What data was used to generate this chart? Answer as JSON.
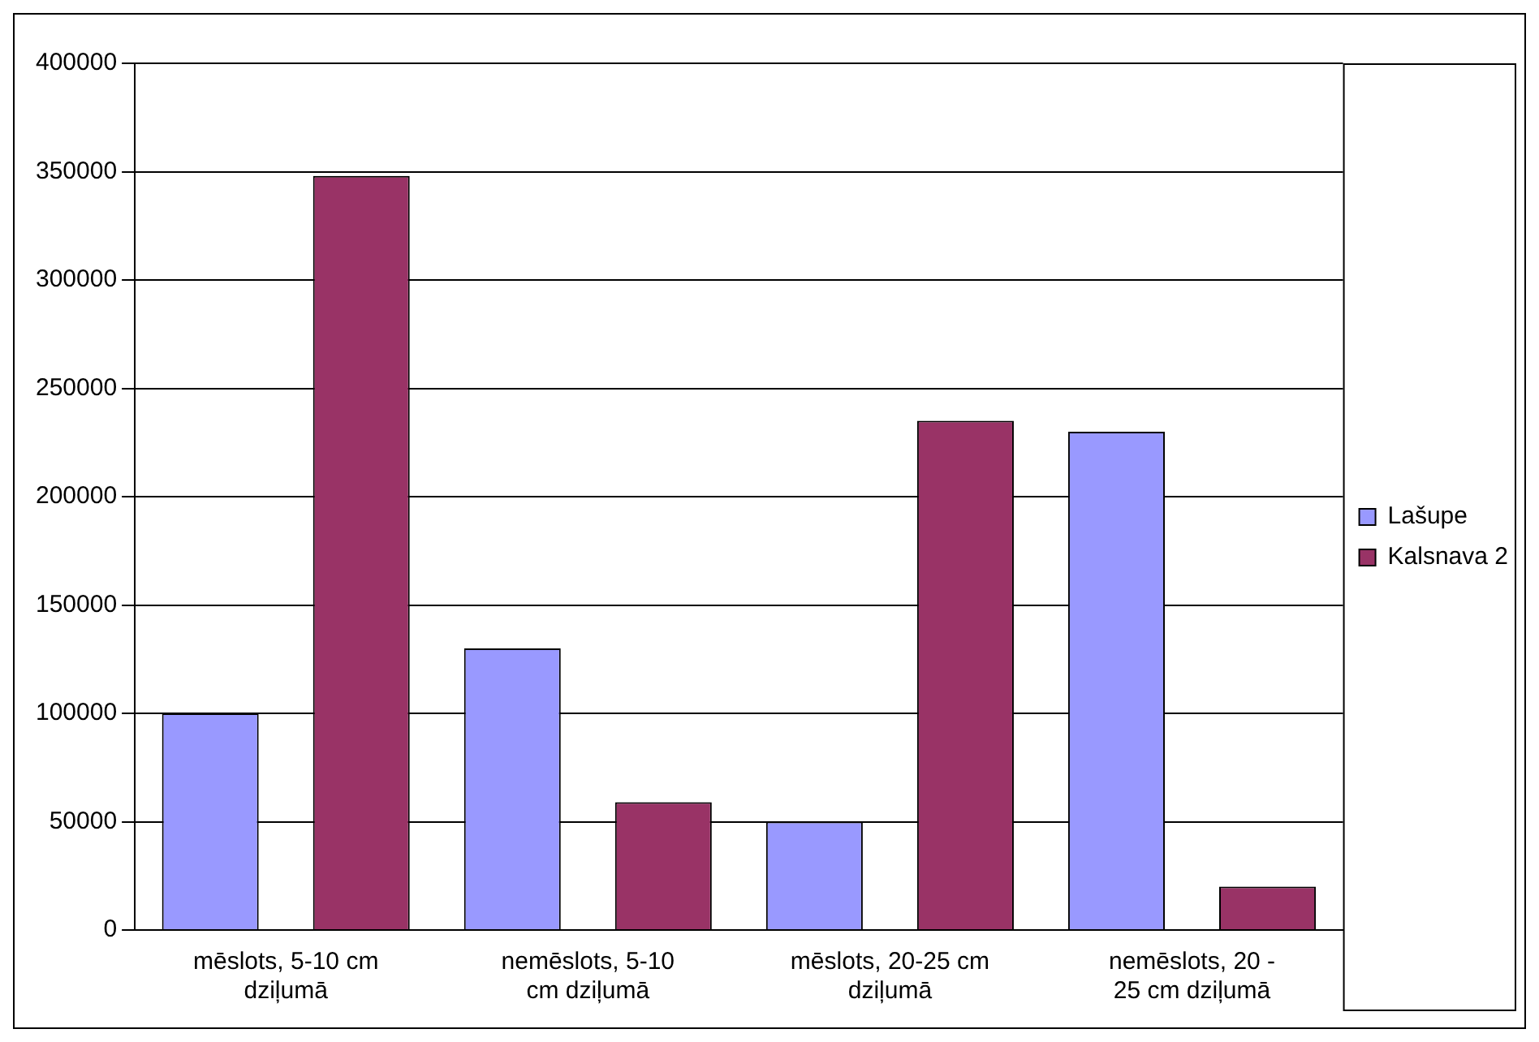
{
  "chart_data": {
    "type": "bar",
    "categories": [
      "mēslots, 5-10 cm dziļumā",
      "nemēslots, 5-10 cm dziļumā",
      "mēslots, 20-25 cm dziļumā",
      "nemēslots, 20 - 25 cm dziļumā"
    ],
    "series": [
      {
        "name": "Lašupe",
        "color": "#9999ff",
        "values": [
          100000,
          130000,
          50000,
          230000
        ]
      },
      {
        "name": "Kalsnava 2",
        "color": "#993366",
        "values": [
          348000,
          59000,
          235000,
          20000
        ]
      }
    ],
    "ylim": [
      0,
      400000
    ],
    "yticks": [
      0,
      50000,
      100000,
      150000,
      200000,
      250000,
      300000,
      350000,
      400000
    ],
    "grid": "y",
    "legend": "right"
  }
}
